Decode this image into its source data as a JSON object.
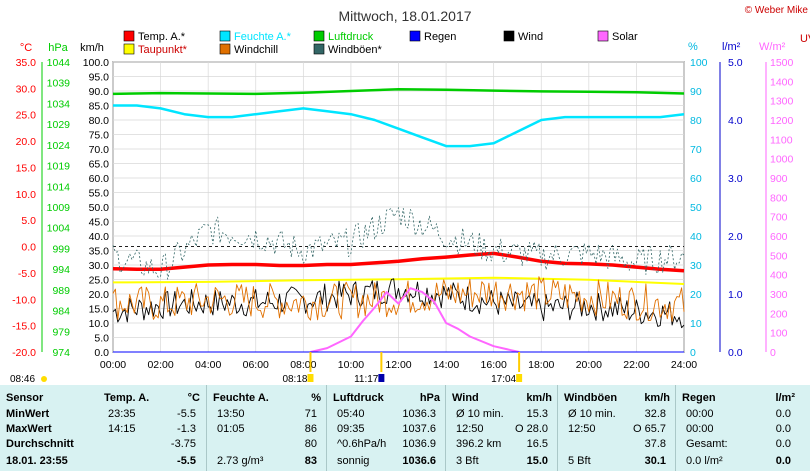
{
  "title": "Mittwoch, 18.01.2017",
  "copyright": "© Weber Mike",
  "legend": [
    {
      "label": "Temp. A.*",
      "color": "#ff0000"
    },
    {
      "label": "Feuchte A.*",
      "color": "#00e5ff"
    },
    {
      "label": "Luftdruck",
      "color": "#00cc00"
    },
    {
      "label": "Regen",
      "color": "#0000ff"
    },
    {
      "label": "Wind",
      "color": "#000000"
    },
    {
      "label": "Solar",
      "color": "#ff66ff"
    },
    {
      "label": "Taupunkt*",
      "color": "#ffff00"
    },
    {
      "label": "Windchill",
      "color": "#e07000"
    },
    {
      "label": "Windböen*",
      "color": "#336666"
    }
  ],
  "axes": {
    "temp": {
      "unit": "°C",
      "ticks": [
        "35.0",
        "30.0",
        "25.0",
        "20.0",
        "15.0",
        "10.0",
        "5.0",
        "0.0",
        "-5.0",
        "-10.0",
        "-15.0",
        "-20.0"
      ],
      "color": "#ff0000"
    },
    "press": {
      "unit": "hPa",
      "ticks": [
        "1044",
        "1039",
        "1034",
        "1029",
        "1024",
        "1019",
        "1014",
        "1009",
        "1004",
        "999",
        "994",
        "989",
        "984",
        "979",
        "974"
      ],
      "color": "#00cc00"
    },
    "wind": {
      "unit": "km/h",
      "ticks": [
        "100.0",
        "95.0",
        "90.0",
        "85.0",
        "80.0",
        "75.0",
        "70.0",
        "65.0",
        "60.0",
        "55.0",
        "50.0",
        "45.0",
        "40.0",
        "35.0",
        "30.0",
        "25.0",
        "20.0",
        "15.0",
        "10.0",
        "5.0",
        "0.0"
      ]
    },
    "hum": {
      "unit": "%",
      "ticks": [
        "100",
        "90",
        "80",
        "70",
        "60",
        "50",
        "40",
        "30",
        "20",
        "10",
        "0"
      ],
      "color": "#00b8e0"
    },
    "rain": {
      "unit": "l/m²",
      "ticks": [
        "5.0",
        "4.0",
        "3.0",
        "2.0",
        "1.0",
        "0.0"
      ],
      "color": "#0000cc"
    },
    "solar": {
      "unit": "W/m²",
      "ticks": [
        "1500",
        "1400",
        "1300",
        "1200",
        "1100",
        "1000",
        "900",
        "800",
        "700",
        "600",
        "500",
        "400",
        "300",
        "200",
        "100",
        "0"
      ],
      "color": "#ff66ff"
    },
    "uv": {
      "unit": "UV"
    }
  },
  "x_ticks": [
    "00:00",
    "02:00",
    "04:00",
    "06:00",
    "08:00",
    "10:00",
    "12:00",
    "14:00",
    "16:00",
    "18:00",
    "20:00",
    "22:00",
    "24:00"
  ],
  "sun_markers": [
    {
      "label": "08:46",
      "x_hour": null
    },
    {
      "label": "08:18",
      "x_hour": 8.3
    },
    {
      "label": "11:17",
      "x_hour": 11.28
    },
    {
      "label": "17:04",
      "x_hour": 17.07
    }
  ],
  "chart_data": {
    "type": "line",
    "x_unit": "hour",
    "x_range": [
      0,
      24
    ],
    "series": [
      {
        "name": "Temp. A.*",
        "axis": "°C",
        "x": [
          0,
          1,
          2,
          3,
          4,
          5,
          6,
          7,
          8,
          9,
          10,
          11,
          12,
          13,
          14,
          15,
          16,
          17,
          18,
          19,
          20,
          21,
          22,
          23,
          24
        ],
        "values": [
          -4.2,
          -4.3,
          -4.3,
          -3.9,
          -3.5,
          -3.4,
          -3.4,
          -3.6,
          -3.6,
          -3.4,
          -3.4,
          -3.1,
          -2.8,
          -2.3,
          -2.0,
          -1.6,
          -1.3,
          -2.0,
          -2.8,
          -3.2,
          -3.3,
          -3.5,
          -3.9,
          -4.3,
          -4.6
        ]
      },
      {
        "name": "Feuchte A.*",
        "axis": "%",
        "x": [
          0,
          1,
          2,
          3,
          4,
          5,
          6,
          7,
          8,
          9,
          10,
          11,
          12,
          13,
          14,
          15,
          16,
          17,
          18,
          19,
          20,
          21,
          22,
          23,
          24
        ],
        "values": [
          85,
          85,
          84,
          82,
          81,
          81,
          82,
          83,
          84,
          83,
          82,
          80,
          77,
          74,
          71,
          71,
          72,
          76,
          80,
          81,
          81,
          81,
          81,
          81,
          82
        ]
      },
      {
        "name": "Luftdruck",
        "axis": "hPa",
        "x": [
          0,
          2,
          4,
          6,
          8,
          10,
          12,
          14,
          16,
          18,
          20,
          22,
          24
        ],
        "values": [
          1036.3,
          1036.5,
          1036.4,
          1036.3,
          1036.6,
          1037.0,
          1037.4,
          1037.3,
          1037.1,
          1036.9,
          1036.8,
          1036.7,
          1036.4
        ]
      },
      {
        "name": "Taupunkt*",
        "axis": "°C",
        "x": [
          0,
          4,
          8,
          12,
          16,
          20,
          24
        ],
        "values": [
          -6.8,
          -6.7,
          -6.4,
          -6.2,
          -5.9,
          -6.3,
          -7.1
        ]
      },
      {
        "name": "Wind",
        "axis": "km/h",
        "x": [
          0,
          2,
          4,
          6,
          8,
          10,
          12,
          14,
          16,
          18,
          20,
          22,
          24
        ],
        "values": [
          14,
          16,
          17,
          17,
          18,
          20,
          22,
          20,
          17,
          15,
          16,
          14,
          13
        ]
      },
      {
        "name": "Windchill",
        "axis": "°C",
        "x": [
          0,
          2,
          4,
          6,
          8,
          10,
          12,
          14,
          16,
          18,
          20,
          22,
          24
        ],
        "values": [
          -10.5,
          -11.0,
          -10.0,
          -10.3,
          -10.5,
          -10.2,
          -9.8,
          -9.0,
          -8.5,
          -9.0,
          -9.5,
          -10.5,
          -11.0
        ]
      },
      {
        "name": "Windböen*",
        "axis": "km/h",
        "x": [
          0,
          2,
          4,
          6,
          8,
          10,
          12,
          14,
          16,
          18,
          20,
          22,
          24
        ],
        "values": [
          33,
          28,
          42,
          40,
          35,
          38,
          48,
          40,
          35,
          33,
          34,
          31,
          33
        ]
      },
      {
        "name": "Solar",
        "axis": "W/m²",
        "x": [
          8.3,
          9,
          10,
          10.5,
          11,
          11.5,
          12,
          12.5,
          13,
          13.5,
          14,
          14.5,
          15,
          16,
          17.07
        ],
        "values": [
          0,
          20,
          80,
          160,
          230,
          310,
          250,
          330,
          310,
          260,
          150,
          120,
          80,
          30,
          0
        ]
      },
      {
        "name": "Regen",
        "axis": "l/m²",
        "x": [
          0,
          24
        ],
        "values": [
          0,
          0
        ]
      }
    ]
  },
  "table": {
    "columns": [
      {
        "header": "Sensor",
        "unit": "",
        "rows": [
          "MinWert",
          "MaxWert",
          "Durchschnitt",
          "18.01. 23:55"
        ]
      },
      {
        "header": "Temp. A.",
        "unit": "°C",
        "rows": [
          [
            "23:35",
            "-5.5"
          ],
          [
            "14:15",
            "-1.3"
          ],
          [
            "",
            "-3.75"
          ],
          [
            "",
            "-5.5"
          ]
        ]
      },
      {
        "header": "Feuchte A.",
        "unit": "%",
        "rows": [
          [
            "13:50",
            "71"
          ],
          [
            "01:05",
            "86"
          ],
          [
            "",
            "80"
          ],
          [
            "2.73 g/m³",
            "83"
          ]
        ]
      },
      {
        "header": "Luftdruck",
        "unit": "hPa",
        "rows": [
          [
            "05:40",
            "1036.3"
          ],
          [
            "09:35",
            "1037.6"
          ],
          [
            "^0.6hPa/h",
            "1036.9"
          ],
          [
            "sonnig",
            "1036.6"
          ]
        ]
      },
      {
        "header": "Wind",
        "unit": "km/h",
        "rows": [
          [
            "Ø 10 min.",
            "15.3"
          ],
          [
            "12:50",
            "O 28.0"
          ],
          [
            "396.2 km",
            "16.5"
          ],
          [
            "3 Bft",
            "15.0"
          ]
        ]
      },
      {
        "header": "Windböen",
        "unit": "km/h",
        "rows": [
          [
            "Ø 10 min.",
            "32.8"
          ],
          [
            "12:50",
            "O 65.7"
          ],
          [
            "",
            "37.8"
          ],
          [
            "5 Bft",
            "30.1"
          ]
        ]
      },
      {
        "header": "Regen",
        "unit": "l/m²",
        "rows": [
          [
            "00:00",
            "0.0"
          ],
          [
            "00:00",
            "0.0"
          ],
          [
            "Gesamt:",
            "0.0"
          ],
          [
            "0.0 l/m²",
            "0.0"
          ]
        ]
      }
    ]
  }
}
